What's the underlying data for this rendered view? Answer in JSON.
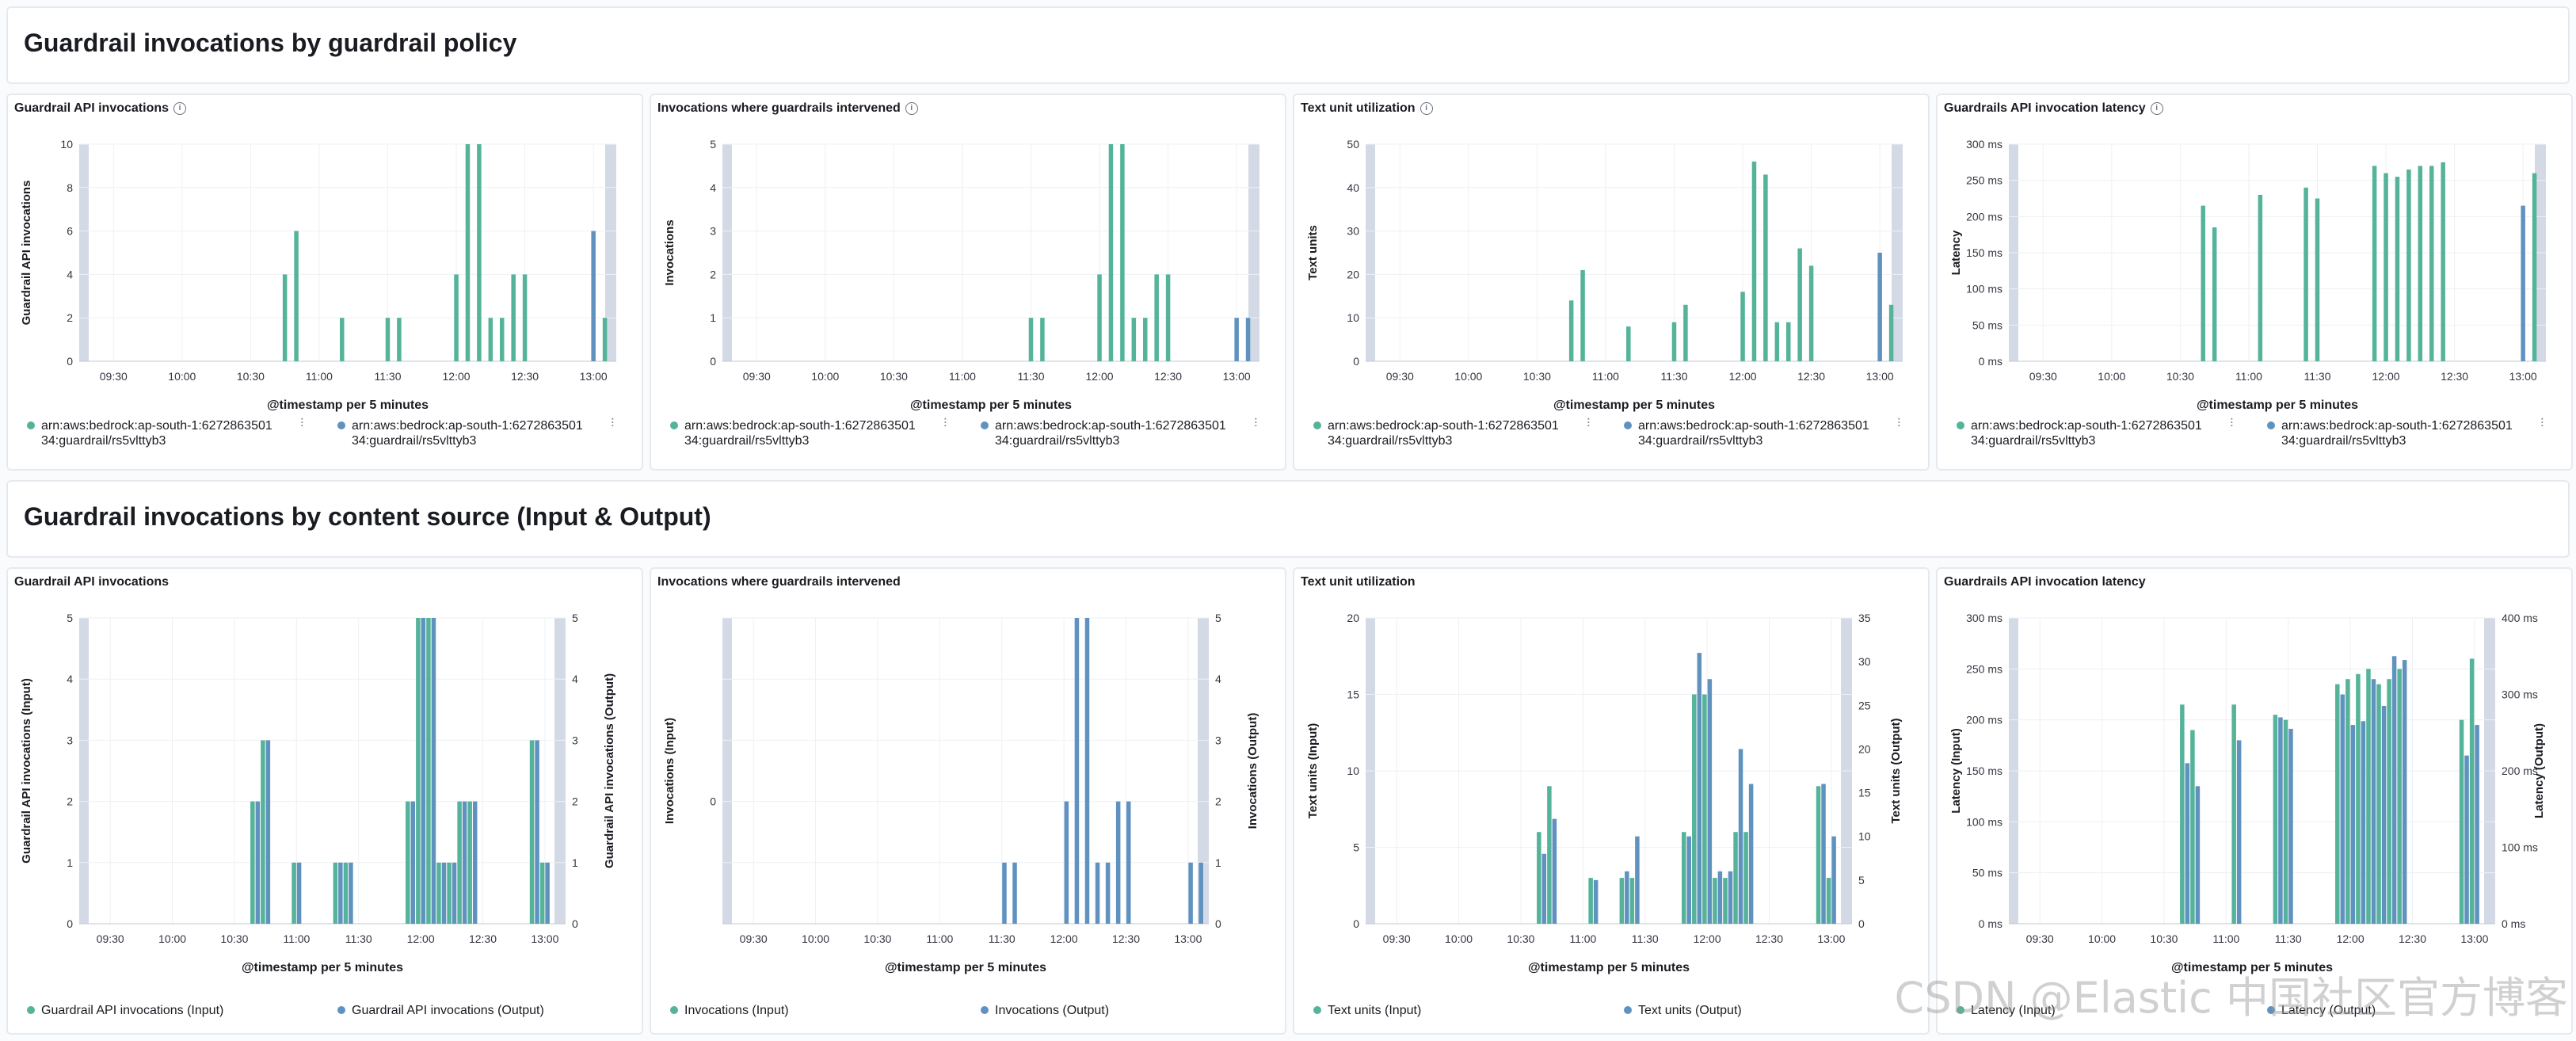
{
  "colors": {
    "input": "#54b399",
    "output": "#6092c0",
    "grid": "#eef0f3",
    "tick": "#69707d",
    "shade": "#d3dae6"
  },
  "sections": [
    {
      "title": "Guardrail invocations by guardrail policy"
    },
    {
      "title": "Guardrail invocations by content source (Input & Output)"
    }
  ],
  "x_ticks": [
    "09:30",
    "10:00",
    "10:30",
    "11:00",
    "11:30",
    "12:00",
    "12:30",
    "13:00"
  ],
  "x_axis_label": "@timestamp per 5 minutes",
  "watermark": "CSDN @Elastic 中国社区官方博客",
  "chart_data": [
    {
      "type": "bar",
      "title": "Guardrail API invocations",
      "info": true,
      "ylabel": "Guardrail API invocations",
      "ylim": [
        0,
        10
      ],
      "yticks": [
        "0",
        "2",
        "4",
        "6",
        "8",
        "10"
      ],
      "legend": [
        "arn:aws:bedrock:ap-south-1:627286350134:guardrail/rs5vlttyb3",
        "arn:aws:bedrock:ap-south-1:627286350134:guardrail/rs5vlttyb3"
      ],
      "series": [
        {
          "name": "arn:aws:bedrock:ap-south-1:627286350134:guardrail/rs5vlttyb3",
          "color": "input",
          "points": [
            [
              "10:45",
              4
            ],
            [
              "10:50",
              6
            ],
            [
              "11:10",
              2
            ],
            [
              "11:30",
              2
            ],
            [
              "11:35",
              2
            ],
            [
              "12:00",
              4
            ],
            [
              "12:05",
              10
            ],
            [
              "12:10",
              10
            ],
            [
              "12:15",
              2
            ],
            [
              "12:20",
              2
            ],
            [
              "12:25",
              4
            ],
            [
              "12:30",
              4
            ],
            [
              "13:05",
              2
            ]
          ]
        },
        {
          "name": "arn:aws:bedrock:ap-south-1:627286350134:guardrail/rs5vlttyb3",
          "color": "output",
          "points": [
            [
              "13:00",
              6
            ]
          ]
        }
      ]
    },
    {
      "type": "bar",
      "title": "Invocations where guardrails intervened",
      "info": true,
      "ylabel": "Invocations",
      "ylim": [
        0,
        5
      ],
      "yticks": [
        "0",
        "1",
        "2",
        "3",
        "4",
        "5"
      ],
      "legend": [
        "arn:aws:bedrock:ap-south-1:627286350134:guardrail/rs5vlttyb3",
        "arn:aws:bedrock:ap-south-1:627286350134:guardrail/rs5vlttyb3"
      ],
      "series": [
        {
          "name": "arn:aws:bedrock:ap-south-1:627286350134:guardrail/rs5vlttyb3",
          "color": "input",
          "points": [
            [
              "11:30",
              1
            ],
            [
              "11:35",
              1
            ],
            [
              "12:00",
              2
            ],
            [
              "12:05",
              5
            ],
            [
              "12:10",
              5
            ],
            [
              "12:15",
              1
            ],
            [
              "12:20",
              1
            ],
            [
              "12:25",
              2
            ],
            [
              "12:30",
              2
            ]
          ]
        },
        {
          "name": "arn:aws:bedrock:ap-south-1:627286350134:guardrail/rs5vlttyb3",
          "color": "output",
          "points": [
            [
              "13:00",
              1
            ],
            [
              "13:05",
              1
            ]
          ]
        }
      ]
    },
    {
      "type": "bar",
      "title": "Text unit utilization",
      "info": true,
      "ylabel": "Text units",
      "ylim": [
        0,
        50
      ],
      "yticks": [
        "0",
        "10",
        "20",
        "30",
        "40",
        "50"
      ],
      "legend": [
        "arn:aws:bedrock:ap-south-1:627286350134:guardrail/rs5vlttyb3",
        "arn:aws:bedrock:ap-south-1:627286350134:guardrail/rs5vlttyb3"
      ],
      "series": [
        {
          "name": "arn:aws:bedrock:ap-south-1:627286350134:guardrail/rs5vlttyb3",
          "color": "input",
          "points": [
            [
              "10:45",
              14
            ],
            [
              "10:50",
              21
            ],
            [
              "11:10",
              8
            ],
            [
              "11:30",
              9
            ],
            [
              "11:35",
              13
            ],
            [
              "12:00",
              16
            ],
            [
              "12:05",
              46
            ],
            [
              "12:10",
              43
            ],
            [
              "12:15",
              9
            ],
            [
              "12:20",
              9
            ],
            [
              "12:25",
              26
            ],
            [
              "12:30",
              22
            ],
            [
              "13:05",
              13
            ]
          ]
        },
        {
          "name": "arn:aws:bedrock:ap-south-1:627286350134:guardrail/rs5vlttyb3",
          "color": "output",
          "points": [
            [
              "13:00",
              25
            ]
          ]
        }
      ]
    },
    {
      "type": "bar",
      "title": "Guardrails API invocation latency",
      "info": true,
      "ylabel": "Latency",
      "ylim": [
        0,
        300
      ],
      "yticks": [
        "0 ms",
        "50 ms",
        "100 ms",
        "150 ms",
        "200 ms",
        "250 ms",
        "300 ms"
      ],
      "legend": [
        "arn:aws:bedrock:ap-south-1:627286350134:guardrail/rs5vlttyb3",
        "arn:aws:bedrock:ap-south-1:627286350134:guardrail/rs5vlttyb3"
      ],
      "series": [
        {
          "name": "arn:aws:bedrock:ap-south-1:627286350134:guardrail/rs5vlttyb3",
          "color": "input",
          "points": [
            [
              "10:40",
              215
            ],
            [
              "10:45",
              185
            ],
            [
              "11:05",
              230
            ],
            [
              "11:25",
              240
            ],
            [
              "11:30",
              225
            ],
            [
              "11:55",
              270
            ],
            [
              "12:00",
              260
            ],
            [
              "12:05",
              255
            ],
            [
              "12:10",
              265
            ],
            [
              "12:15",
              270
            ],
            [
              "12:20",
              270
            ],
            [
              "12:25",
              275
            ],
            [
              "13:05",
              260
            ]
          ]
        },
        {
          "name": "arn:aws:bedrock:ap-south-1:627286350134:guardrail/rs5vlttyb3",
          "color": "output",
          "points": [
            [
              "13:00",
              215
            ]
          ]
        }
      ]
    },
    {
      "type": "bar",
      "title": "Guardrail API invocations",
      "info": false,
      "ylabel": "Guardrail API invocations (Input)",
      "ylabel_right": "Guardrail API invocations (Output)",
      "ylim": [
        0,
        5
      ],
      "yticks": [
        "0",
        "1",
        "2",
        "3",
        "4",
        "5"
      ],
      "yticks_right": [
        "0",
        "1",
        "2",
        "3",
        "4",
        "5"
      ],
      "legend": [
        "Guardrail API invocations (Input)",
        "Guardrail API invocations (Output)"
      ],
      "series": [
        {
          "name": "Guardrail API invocations (Input)",
          "color": "input",
          "points": [
            [
              "10:40",
              2
            ],
            [
              "10:45",
              3
            ],
            [
              "11:00",
              1
            ],
            [
              "11:20",
              1
            ],
            [
              "11:25",
              1
            ],
            [
              "11:55",
              2
            ],
            [
              "12:00",
              5
            ],
            [
              "12:05",
              5
            ],
            [
              "12:10",
              1
            ],
            [
              "12:15",
              1
            ],
            [
              "12:20",
              2
            ],
            [
              "12:25",
              2
            ],
            [
              "12:55",
              3
            ],
            [
              "13:00",
              1
            ]
          ]
        },
        {
          "name": "Guardrail API invocations (Output)",
          "color": "output",
          "points": [
            [
              "10:40",
              2
            ],
            [
              "10:45",
              3
            ],
            [
              "11:00",
              1
            ],
            [
              "11:20",
              1
            ],
            [
              "11:25",
              1
            ],
            [
              "11:55",
              2
            ],
            [
              "12:00",
              5
            ],
            [
              "12:05",
              5
            ],
            [
              "12:10",
              1
            ],
            [
              "12:15",
              1
            ],
            [
              "12:20",
              2
            ],
            [
              "12:25",
              2
            ],
            [
              "12:55",
              3
            ],
            [
              "13:00",
              1
            ]
          ]
        }
      ]
    },
    {
      "type": "bar",
      "title": "Invocations where guardrails intervened",
      "info": false,
      "ylabel": "Invocations (Input)",
      "ylabel_right": "Invocations (Output)",
      "ylim": [
        0,
        5
      ],
      "yticks": [
        "",
        "",
        "0",
        "",
        "",
        ""
      ],
      "yticks_right": [
        "0",
        "1",
        "2",
        "3",
        "4",
        "5"
      ],
      "legend": [
        "Invocations (Input)",
        "Invocations (Output)"
      ],
      "series": [
        {
          "name": "Invocations (Input)",
          "color": "input",
          "points": []
        },
        {
          "name": "Invocations (Output)",
          "color": "output",
          "points": [
            [
              "11:30",
              1
            ],
            [
              "11:35",
              1
            ],
            [
              "12:00",
              2
            ],
            [
              "12:05",
              5
            ],
            [
              "12:10",
              5
            ],
            [
              "12:15",
              1
            ],
            [
              "12:20",
              1
            ],
            [
              "12:25",
              2
            ],
            [
              "12:30",
              2
            ],
            [
              "13:00",
              1
            ],
            [
              "13:05",
              1
            ]
          ]
        }
      ]
    },
    {
      "type": "bar",
      "title": "Text unit utilization",
      "info": false,
      "ylabel": "Text units (Input)",
      "ylabel_right": "Text units (Output)",
      "ylim": [
        0,
        20
      ],
      "yticks": [
        "0",
        "5",
        "10",
        "15",
        "20"
      ],
      "yticks_right": [
        "0",
        "5",
        "10",
        "15",
        "20",
        "25",
        "30",
        "35"
      ],
      "legend": [
        "Text units (Input)",
        "Text units (Output)"
      ],
      "series": [
        {
          "name": "Text units (Input)",
          "color": "input",
          "points": [
            [
              "10:40",
              6
            ],
            [
              "10:45",
              9
            ],
            [
              "11:05",
              3
            ],
            [
              "11:20",
              3
            ],
            [
              "11:25",
              3
            ],
            [
              "11:50",
              6
            ],
            [
              "11:55",
              15
            ],
            [
              "12:00",
              15
            ],
            [
              "12:05",
              3
            ],
            [
              "12:10",
              3
            ],
            [
              "12:15",
              6
            ],
            [
              "12:20",
              6
            ],
            [
              "12:55",
              9
            ],
            [
              "13:00",
              3
            ]
          ]
        },
        {
          "name": "Text units (Output)",
          "color": "output",
          "points": [
            [
              "10:40",
              8
            ],
            [
              "10:45",
              12
            ],
            [
              "11:05",
              5
            ],
            [
              "11:20",
              6
            ],
            [
              "11:25",
              10
            ],
            [
              "11:50",
              10
            ],
            [
              "11:55",
              31
            ],
            [
              "12:00",
              28
            ],
            [
              "12:05",
              6
            ],
            [
              "12:10",
              6
            ],
            [
              "12:15",
              20
            ],
            [
              "12:20",
              16
            ],
            [
              "12:55",
              16
            ],
            [
              "13:00",
              10
            ]
          ]
        }
      ]
    },
    {
      "type": "bar",
      "title": "Guardrails API invocation latency",
      "info": false,
      "ylabel": "Latency (Input)",
      "ylabel_right": "Latency (Output)",
      "ylim": [
        0,
        300
      ],
      "yticks": [
        "0 ms",
        "50 ms",
        "100 ms",
        "150 ms",
        "200 ms",
        "250 ms",
        "300 ms"
      ],
      "yticks_right": [
        "0 ms",
        "100 ms",
        "200 ms",
        "300 ms",
        "400 ms"
      ],
      "legend": [
        "Latency (Input)",
        "Latency (Output)"
      ],
      "series": [
        {
          "name": "Latency (Input)",
          "color": "input",
          "points": [
            [
              "10:40",
              215
            ],
            [
              "10:45",
              190
            ],
            [
              "11:05",
              215
            ],
            [
              "11:25",
              205
            ],
            [
              "11:30",
              200
            ],
            [
              "11:55",
              235
            ],
            [
              "12:00",
              240
            ],
            [
              "12:05",
              245
            ],
            [
              "12:10",
              250
            ],
            [
              "12:15",
              235
            ],
            [
              "12:20",
              240
            ],
            [
              "12:25",
              250
            ],
            [
              "12:55",
              200
            ],
            [
              "13:00",
              260
            ]
          ]
        },
        {
          "name": "Latency (Output)",
          "color": "output",
          "points": [
            [
              "10:40",
              210
            ],
            [
              "10:45",
              180
            ],
            [
              "11:05",
              240
            ],
            [
              "11:25",
              270
            ],
            [
              "11:30",
              255
            ],
            [
              "11:55",
              300
            ],
            [
              "12:00",
              260
            ],
            [
              "12:05",
              265
            ],
            [
              "12:10",
              320
            ],
            [
              "12:15",
              285
            ],
            [
              "12:20",
              350
            ],
            [
              "12:25",
              345
            ],
            [
              "12:55",
              220
            ],
            [
              "13:00",
              260
            ]
          ]
        }
      ]
    }
  ]
}
